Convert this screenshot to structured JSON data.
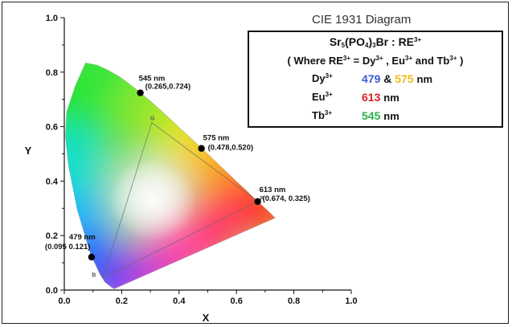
{
  "chart_data": {
    "type": "scatter",
    "title": "CIE 1931 Diagram",
    "xlabel": "X",
    "ylabel": "Y",
    "xlim": [
      0.0,
      1.0
    ],
    "ylim": [
      0.0,
      1.0
    ],
    "x_ticks": [
      "0.0",
      "0.2",
      "0.4",
      "0.6",
      "0.8",
      "1.0"
    ],
    "y_ticks": [
      "0.0",
      "0.2",
      "0.4",
      "0.6",
      "0.8",
      "1.0"
    ],
    "grid": false,
    "points": [
      {
        "wavelength": "479 nm",
        "x": 0.095,
        "y": 0.121,
        "coord_label": "(0.095 0.121)"
      },
      {
        "wavelength": "545 nm",
        "x": 0.265,
        "y": 0.724,
        "coord_label": "(0.265,0.724)"
      },
      {
        "wavelength": "575 nm",
        "x": 0.478,
        "y": 0.52,
        "coord_label": "(0.478,0.520)"
      },
      {
        "wavelength": "613 nm",
        "x": 0.674,
        "y": 0.325,
        "coord_label": "(0.674, 0.325)"
      }
    ],
    "triangle_vertex_labels": {
      "blue": "B",
      "green": "G",
      "red": "R"
    },
    "legend": {
      "placement": "top-right",
      "compound_parts": [
        "Sr",
        "5",
        "(PO",
        "4",
        ")",
        "3",
        "Br : RE",
        "3+"
      ],
      "where_parts": [
        "( Where RE",
        "3+",
        " = Dy",
        "3+",
        " , Eu",
        "3+",
        "  and Tb",
        "3+",
        " )"
      ],
      "rows": [
        {
          "ion": "Dy",
          "charge": "3+",
          "values": [
            "479",
            "575"
          ],
          "joiner": "&",
          "colors": [
            "#3a5bd9",
            "#f5b81c"
          ],
          "unit": "nm"
        },
        {
          "ion": "Eu",
          "charge": "3+",
          "values": [
            "613"
          ],
          "colors": [
            "#e02020"
          ],
          "unit": "nm"
        },
        {
          "ion": "Tb",
          "charge": "3+",
          "values": [
            "545"
          ],
          "colors": [
            "#2bb04a"
          ],
          "unit": "nm"
        }
      ]
    }
  }
}
